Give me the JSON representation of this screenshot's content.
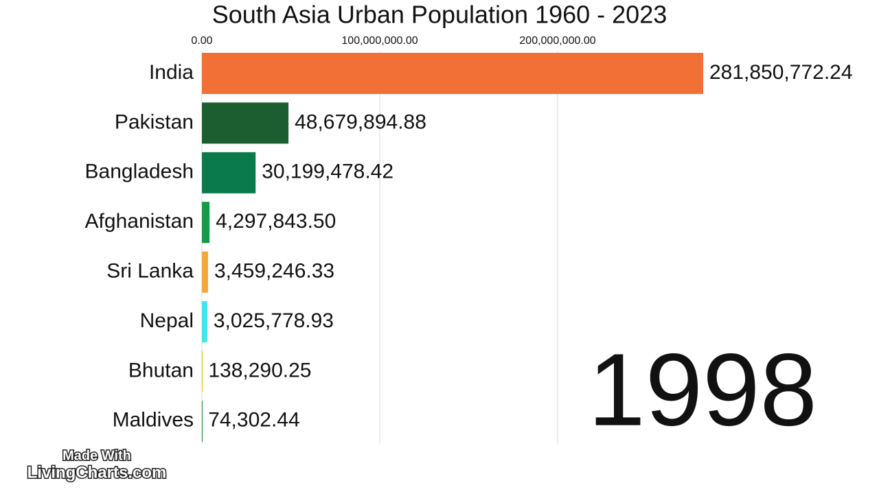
{
  "chart_data": {
    "type": "hbar",
    "title": "South Asia Urban Population 1960 - 2023",
    "categories": [
      "India",
      "Pakistan",
      "Bangladesh",
      "Afghanistan",
      "Sri Lanka",
      "Nepal",
      "Bhutan",
      "Maldives"
    ],
    "values": [
      281850772.24,
      48679894.88,
      30199478.42,
      4297843.5,
      3459246.33,
      3025778.93,
      138290.25,
      74302.44
    ],
    "value_labels": [
      "281,850,772.24",
      "48,679,894.88",
      "30,199,478.42",
      "4,297,843.50",
      "3,459,246.33",
      "3,025,778.93",
      "138,290.25",
      "74,302.44"
    ],
    "colors": [
      "#f26f36",
      "#1d5e30",
      "#0b7a4b",
      "#169a48",
      "#f3a83a",
      "#3fe6ef",
      "#f2c200",
      "#1f8a3a"
    ],
    "xlim": [
      0,
      300000000
    ],
    "xticks": [
      {
        "value": 0,
        "label": "0.00"
      },
      {
        "value": 100000000,
        "label": "100,000,000.00"
      },
      {
        "value": 200000000,
        "label": "200,000,000.00"
      }
    ],
    "grid": true,
    "annotation": "1998",
    "watermark": [
      "Made With",
      "LivingCharts.com"
    ]
  }
}
